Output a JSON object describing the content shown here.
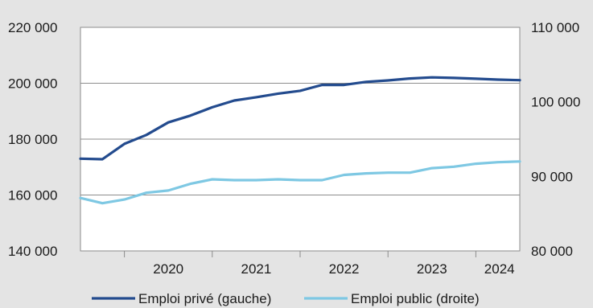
{
  "chart_data": {
    "type": "line",
    "title": "",
    "x_ticks": [
      "2020",
      "2021",
      "2022",
      "2023",
      "2024"
    ],
    "y_left": {
      "ticks": [
        "140 000",
        "160 000",
        "180 000",
        "200 000",
        "220 000"
      ],
      "range": [
        140000,
        220000
      ]
    },
    "y_right": {
      "ticks": [
        "80 000",
        "90 000",
        "100 000",
        "110 000"
      ],
      "range": [
        80000,
        110000
      ]
    },
    "grid": true,
    "legend_position": "bottom",
    "series": [
      {
        "name": "Emploi privé (gauche)",
        "axis": "left",
        "color": "#234b8e",
        "x": [
          "2019-Q3",
          "2019-Q4",
          "2020-Q1",
          "2020-Q2",
          "2020-Q3",
          "2020-Q4",
          "2021-Q1",
          "2021-Q2",
          "2021-Q3",
          "2021-Q4",
          "2022-Q1",
          "2022-Q2",
          "2022-Q3",
          "2022-Q4",
          "2023-Q1",
          "2023-Q2",
          "2023-Q3",
          "2023-Q4",
          "2024-Q1",
          "2024-Q2",
          "2024-Q3"
        ],
        "values": [
          173000,
          172800,
          178300,
          181500,
          186000,
          188400,
          191400,
          193800,
          195000,
          196300,
          197300,
          199400,
          199400,
          200500,
          201000,
          201700,
          202100,
          201900,
          201600,
          201300,
          201100
        ]
      },
      {
        "name": "Emploi public (droite)",
        "axis": "right",
        "color": "#7ec8e3",
        "x": [
          "2019-Q3",
          "2019-Q4",
          "2020-Q1",
          "2020-Q2",
          "2020-Q3",
          "2020-Q4",
          "2021-Q1",
          "2021-Q2",
          "2021-Q3",
          "2021-Q4",
          "2022-Q1",
          "2022-Q2",
          "2022-Q3",
          "2022-Q4",
          "2023-Q1",
          "2023-Q2",
          "2023-Q3",
          "2023-Q4",
          "2024-Q1",
          "2024-Q2",
          "2024-Q3"
        ],
        "values": [
          87100,
          86400,
          86900,
          87800,
          88100,
          89000,
          89600,
          89500,
          89500,
          89600,
          89500,
          89500,
          90200,
          90400,
          90500,
          90500,
          91100,
          91300,
          91700,
          91900,
          92000
        ]
      }
    ]
  }
}
